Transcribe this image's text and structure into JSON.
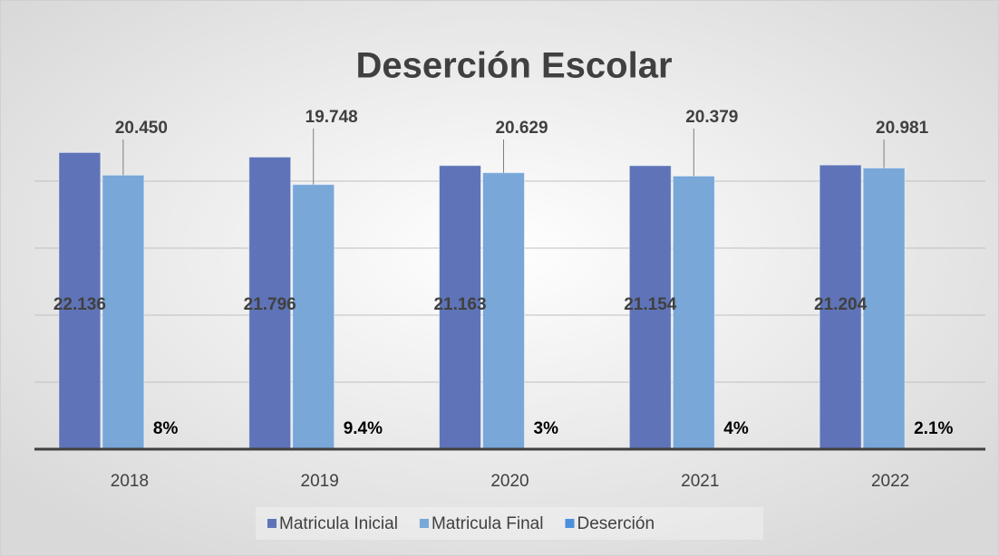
{
  "chart_data": {
    "type": "bar",
    "title": "Deserción Escolar",
    "categories": [
      "2018",
      "2019",
      "2020",
      "2021",
      "2022"
    ],
    "series": [
      {
        "name": "Matricula Inicial",
        "color": "#5f74b8",
        "values": [
          22136,
          21796,
          21163,
          21154,
          21204
        ],
        "value_labels": [
          "22.136",
          "21.796",
          "21.163",
          "21.154",
          "21.204"
        ]
      },
      {
        "name": "Matricula Final",
        "color": "#78a7d8",
        "values": [
          20450,
          19748,
          20629,
          20379,
          20981
        ],
        "value_labels": [
          "20.450",
          "19.748",
          "20.629",
          "20.379",
          "20.981"
        ]
      },
      {
        "name": "Deserción",
        "color": "#4a8fdc",
        "values": [
          8,
          9.4,
          3,
          4,
          2.1
        ],
        "value_labels": [
          "8%",
          "9.4%",
          "3%",
          "4%",
          "2.1%"
        ]
      }
    ],
    "ylim": [
      0,
      25000
    ],
    "yticks": [
      0,
      5000,
      10000,
      15000,
      20000
    ],
    "grid": true,
    "legend": "bottom"
  }
}
